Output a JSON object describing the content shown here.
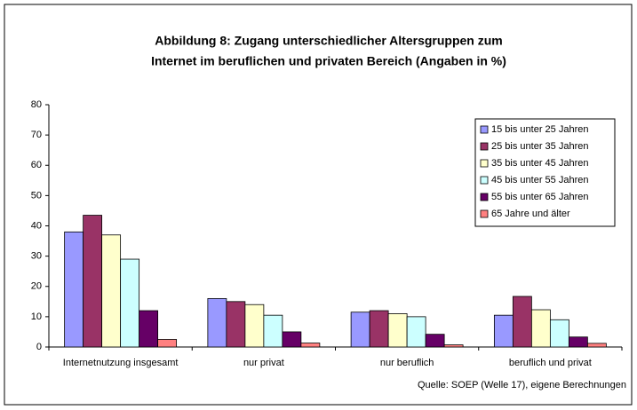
{
  "chart_data": {
    "type": "bar",
    "title": [
      "Abbildung 8: Zugang unterschiedlicher Altersgruppen zum",
      "Internet im beruflichen und privaten Bereich (Angaben in %)"
    ],
    "categories": [
      "Internetnutzung insgesamt",
      "nur privat",
      "nur beruflich",
      "beruflich und privat"
    ],
    "series": [
      {
        "name": "15 bis unter 25 Jahren",
        "color": "#9999ff",
        "values": [
          38,
          16,
          11.5,
          10.5
        ]
      },
      {
        "name": "25 bis unter 35 Jahren",
        "color": "#993366",
        "values": [
          43.5,
          15,
          12,
          16.7
        ]
      },
      {
        "name": "35 bis unter 45 Jahren",
        "color": "#ffffcc",
        "values": [
          37,
          14,
          11,
          12.3
        ]
      },
      {
        "name": "45 bis unter 55 Jahren",
        "color": "#ccffff",
        "values": [
          29,
          10.5,
          10,
          9
        ]
      },
      {
        "name": "55 bis unter 65 Jahren",
        "color": "#660066",
        "values": [
          12,
          5,
          4.2,
          3.3
        ]
      },
      {
        "name": "65 Jahre und älter",
        "color": "#ff8080",
        "values": [
          2.5,
          1.3,
          0.7,
          1.2
        ]
      }
    ],
    "ylim": [
      0,
      80
    ],
    "yticks": [
      0,
      10,
      20,
      30,
      40,
      50,
      60,
      70,
      80
    ],
    "grid": false,
    "legend": "right",
    "source": "Quelle: SOEP (Welle 17), eigene Berechnungen"
  }
}
